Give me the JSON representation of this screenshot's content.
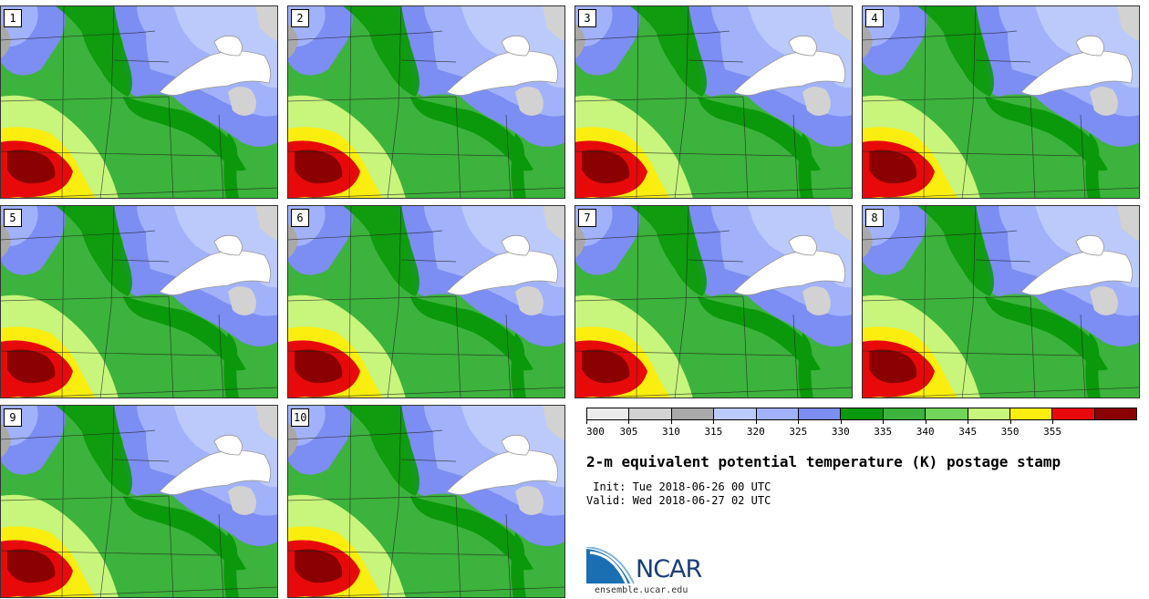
{
  "title": "2-m equivalent potential temperature (K) postage stamp",
  "init_line": " Init: Tue 2018-06-26 00 UTC",
  "valid_line": "Valid: Wed 2018-06-27 02 UTC",
  "members": [
    "1",
    "2",
    "3",
    "4",
    "5",
    "6",
    "7",
    "8",
    "9",
    "10"
  ],
  "colorbar": {
    "levels": [
      "300",
      "305",
      "310",
      "315",
      "320",
      "325",
      "330",
      "335",
      "340",
      "345",
      "350",
      "355"
    ],
    "colors": [
      "#ebebeb",
      "#d2d2d2",
      "#a9a9a9",
      "#bcc9fb",
      "#a1b2fb",
      "#7c8df3",
      "#0a990a",
      "#3cb33c",
      "#72d45a",
      "#c8f57b",
      "#fbee0f",
      "#e80a0a",
      "#8b0000"
    ]
  },
  "logo_text": "NCAR",
  "site": "ensemble.ucar.edu"
}
